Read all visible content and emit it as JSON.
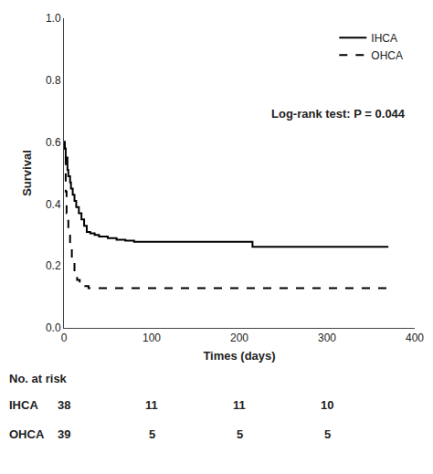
{
  "chart_data": {
    "type": "step",
    "xlabel": "Times (days)",
    "ylabel": "Survival",
    "series": [
      {
        "name": "IHCA",
        "color": "#000000",
        "line_style": "solid",
        "x": [
          0,
          1,
          2,
          4,
          5,
          7,
          8,
          10,
          12,
          14,
          17,
          20,
          23,
          26,
          30,
          35,
          40,
          50,
          60,
          70,
          80,
          210,
          215,
          370
        ],
        "values": [
          0.6,
          0.58,
          0.55,
          0.51,
          0.49,
          0.47,
          0.45,
          0.43,
          0.41,
          0.39,
          0.37,
          0.35,
          0.33,
          0.31,
          0.305,
          0.3,
          0.295,
          0.29,
          0.285,
          0.282,
          0.278,
          0.278,
          0.262,
          0.262
        ]
      },
      {
        "name": "OHCA",
        "color": "#000000",
        "line_style": "dashed",
        "x": [
          0,
          1,
          2,
          3,
          5,
          7,
          9,
          12,
          15,
          18,
          22,
          28,
          35,
          45,
          370
        ],
        "values": [
          0.6,
          0.56,
          0.44,
          0.37,
          0.32,
          0.26,
          0.21,
          0.18,
          0.155,
          0.145,
          0.135,
          0.128,
          0.128,
          0.128,
          0.128
        ]
      }
    ],
    "xlim": [
      0,
      400
    ],
    "xticks": [
      0,
      100,
      200,
      300,
      400
    ],
    "ylim": [
      0,
      1.0
    ],
    "yticks": [
      {
        "value": 0,
        "label": "0.0"
      },
      0.2,
      0.4,
      0.6,
      0.8,
      {
        "value": 1.0,
        "label": "1.0"
      }
    ],
    "grid": false,
    "legend": "upper right",
    "annotations": [
      "Log-rank test: P = 0.044"
    ],
    "risk_table": {
      "label": "No. at risk",
      "x": [
        0,
        100,
        200,
        300
      ],
      "rows": [
        {
          "name": "IHCA",
          "values": [
            38,
            11,
            11,
            10
          ]
        },
        {
          "name": "OHCA",
          "values": [
            39,
            5,
            5,
            5
          ]
        }
      ]
    }
  }
}
